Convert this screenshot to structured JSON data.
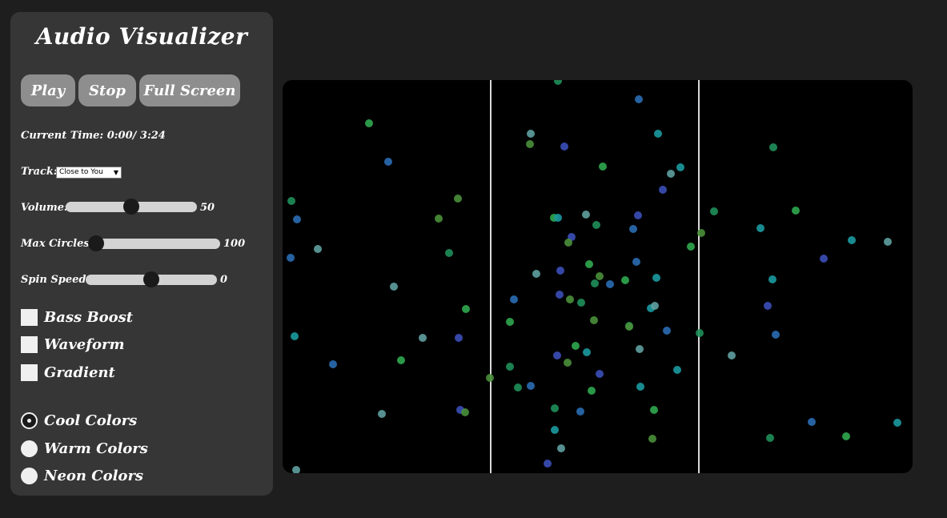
{
  "panel": {
    "title": "Audio Visualizer",
    "buttons": {
      "play": "Play",
      "stop": "Stop",
      "fullscreen": "Full Screen"
    },
    "current_time": "Current Time: 0:00/ 3:24",
    "track": {
      "label": "Track:",
      "selected": "Close to You"
    },
    "volume": {
      "label": "Volume:",
      "value": "50",
      "fraction": 0.5
    },
    "max_circles": {
      "label": "Max Circles:",
      "value": "100",
      "fraction": 0.0
    },
    "spin_speed": {
      "label": "Spin Speed:",
      "value": "0",
      "fraction": 0.5
    },
    "checkboxes": {
      "bass_boost": "Bass Boost",
      "waveform": "Waveform",
      "gradient": "Gradient"
    },
    "radios": {
      "cool": "Cool Colors",
      "warm": "Warm Colors",
      "neon": "Neon Colors"
    }
  },
  "visualizer": {
    "background": "#000000",
    "divider_color": "#d9d9d9",
    "palette": [
      "#1f8f5a",
      "#2a6db3",
      "#2fa84f",
      "#1b9aa0",
      "#5fa0a0",
      "#3b4fb8",
      "#4a8f3a"
    ]
  }
}
